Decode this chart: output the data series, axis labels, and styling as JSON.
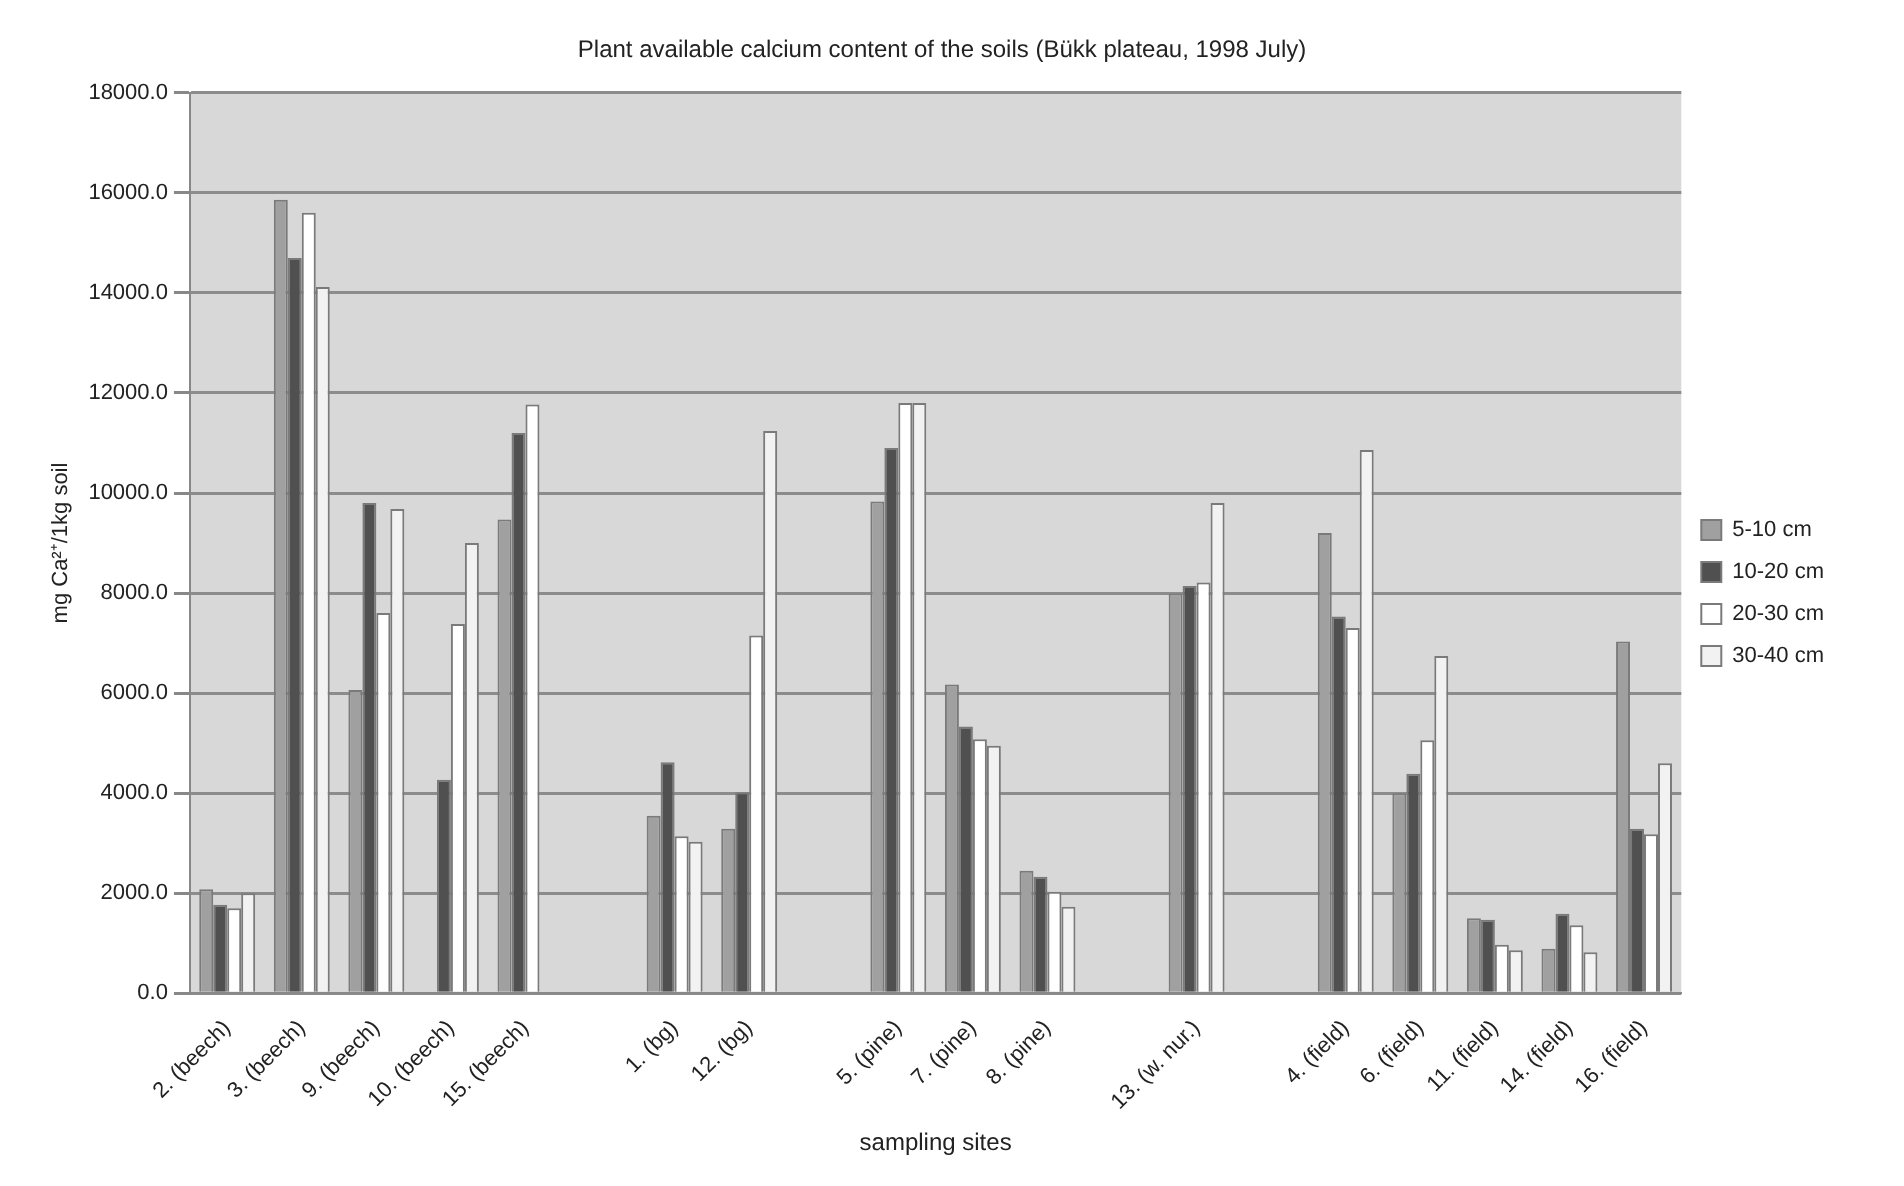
{
  "chart_data": {
    "type": "bar",
    "title": "Plant available calcium content of the soils (Bükk plateau, 1998 July)",
    "xlabel": "sampling sites",
    "ylabel": "mg Ca²⁺/1kg soil",
    "categories": [
      "2. (beech)",
      "3. (beech)",
      "9. (beech)",
      "10. (beech)",
      "15. (beech)",
      null,
      "1. (bg)",
      "12. (bg)",
      null,
      "5. (pine)",
      "7. (pine)",
      "8. (pine)",
      null,
      "13. (w. nur.)",
      null,
      "4. (field)",
      "6. (field)",
      "11. (field)",
      "14. (field)",
      "16. (field)"
    ],
    "series": [
      {
        "name": "5-10 cm",
        "color": "#a0a0a0",
        "values": [
          2080,
          15860,
          6060,
          null,
          9470,
          null,
          3550,
          3290,
          null,
          9830,
          6170,
          2450,
          null,
          7990,
          null,
          9200,
          4000,
          1500,
          890,
          7030
        ]
      },
      {
        "name": "10-20 cm",
        "color": "#505050",
        "values": [
          1770,
          14700,
          9800,
          4270,
          11200,
          null,
          4620,
          4020,
          null,
          10900,
          5330,
          2330,
          null,
          8140,
          null,
          7530,
          4390,
          1470,
          1590,
          3290
        ]
      },
      {
        "name": "20-30 cm",
        "color": "#ffffff",
        "values": [
          1700,
          15600,
          7600,
          7380,
          11770,
          null,
          3140,
          7150,
          null,
          11800,
          5080,
          2030,
          null,
          8210,
          null,
          7300,
          5060,
          970,
          1360,
          3180
        ]
      },
      {
        "name": "30-40 cm",
        "color": "#f2f2f2",
        "values": [
          2000,
          14120,
          9680,
          9000,
          null,
          null,
          3030,
          11240,
          null,
          11800,
          4950,
          1730,
          null,
          9800,
          null,
          10860,
          6740,
          860,
          820,
          4600
        ]
      }
    ],
    "ylim": [
      0,
      18000
    ],
    "yticks": [
      {
        "value": 0,
        "label": "0.0"
      },
      {
        "value": 2000,
        "label": "2000.0"
      },
      {
        "value": 4000,
        "label": "4000.0"
      },
      {
        "value": 6000,
        "label": "6000.0"
      },
      {
        "value": 8000,
        "label": "8000.0"
      },
      {
        "value": 10000,
        "label": "10000.0"
      },
      {
        "value": 12000,
        "label": "12000.0"
      },
      {
        "value": 14000,
        "label": "14000.0"
      },
      {
        "value": 16000,
        "label": "16000.0"
      },
      {
        "value": 18000,
        "label": "18000.0"
      }
    ],
    "grid": "y",
    "legend": "right"
  }
}
